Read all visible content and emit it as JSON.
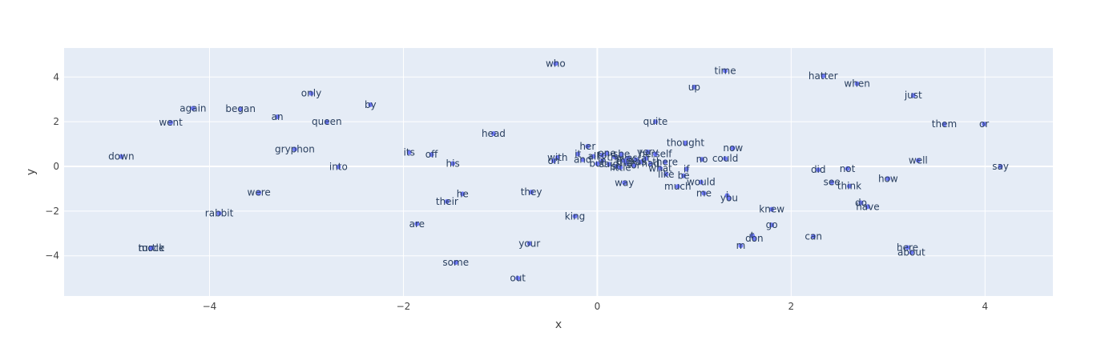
{
  "chart_data": {
    "type": "scatter",
    "xlabel": "x",
    "ylabel": "y",
    "xlim": [
      -5.5,
      4.7
    ],
    "ylim": [
      -5.8,
      5.3
    ],
    "x_ticks": [
      -4,
      -2,
      0,
      2,
      4
    ],
    "y_ticks": [
      -4,
      -2,
      0,
      2,
      4
    ],
    "grid": true,
    "colors": {
      "marker": "#636efa",
      "plot_bg": "#e5ecf6",
      "grid": "#ffffff",
      "label": "#2a3f5f"
    },
    "points": [
      {
        "label": "who",
        "x": -0.43,
        "y": 4.6
      },
      {
        "label": "time",
        "x": 1.32,
        "y": 4.28
      },
      {
        "label": "hatter",
        "x": 2.33,
        "y": 4.05
      },
      {
        "label": "when",
        "x": 2.68,
        "y": 3.7
      },
      {
        "label": "up",
        "x": 1.0,
        "y": 3.55
      },
      {
        "label": "just",
        "x": 3.26,
        "y": 3.18
      },
      {
        "label": "only",
        "x": -2.95,
        "y": 3.27
      },
      {
        "label": "by",
        "x": -2.34,
        "y": 2.76
      },
      {
        "label": "again",
        "x": -4.17,
        "y": 2.6
      },
      {
        "label": "began",
        "x": -3.68,
        "y": 2.57
      },
      {
        "label": "an",
        "x": -3.3,
        "y": 2.22
      },
      {
        "label": "queen",
        "x": -2.79,
        "y": 2.0
      },
      {
        "label": "went",
        "x": -4.4,
        "y": 1.97
      },
      {
        "label": "quite",
        "x": 0.6,
        "y": 2.0
      },
      {
        "label": "them",
        "x": 3.58,
        "y": 1.9
      },
      {
        "label": "or",
        "x": 3.99,
        "y": 1.9
      },
      {
        "label": "head",
        "x": -1.07,
        "y": 1.47
      },
      {
        "label": "her",
        "x": -0.1,
        "y": 0.9
      },
      {
        "label": "thought",
        "x": 0.91,
        "y": 1.05
      },
      {
        "label": "now",
        "x": 1.4,
        "y": 0.82
      },
      {
        "label": "gryphon",
        "x": -3.12,
        "y": 0.77
      },
      {
        "label": "its",
        "x": -1.94,
        "y": 0.63
      },
      {
        "label": "off",
        "x": -1.71,
        "y": 0.53
      },
      {
        "label": "down",
        "x": -4.91,
        "y": 0.44
      },
      {
        "label": "very",
        "x": 0.52,
        "y": 0.65
      },
      {
        "label": "herself",
        "x": 0.6,
        "y": 0.55
      },
      {
        "label": "could",
        "x": 1.32,
        "y": 0.35
      },
      {
        "label": "no",
        "x": 1.08,
        "y": 0.32
      },
      {
        "label": "with",
        "x": -0.41,
        "y": 0.4
      },
      {
        "label": "on",
        "x": -0.45,
        "y": 0.25
      },
      {
        "label": "well",
        "x": 3.31,
        "y": 0.27
      },
      {
        "label": "there",
        "x": 0.7,
        "y": 0.2
      },
      {
        "label": "his",
        "x": -1.49,
        "y": 0.13
      },
      {
        "label": "into",
        "x": -2.67,
        "y": -0.02
      },
      {
        "label": "what",
        "x": 0.65,
        "y": -0.08
      },
      {
        "label": "if",
        "x": 0.92,
        "y": -0.12
      },
      {
        "label": "say",
        "x": 4.16,
        "y": 0.0
      },
      {
        "label": "did",
        "x": 2.28,
        "y": -0.15
      },
      {
        "label": "not",
        "x": 2.58,
        "y": -0.1
      },
      {
        "label": "like",
        "x": 0.71,
        "y": -0.35
      },
      {
        "label": "be",
        "x": 0.89,
        "y": -0.42
      },
      {
        "label": "how",
        "x": 3.0,
        "y": -0.55
      },
      {
        "label": "see",
        "x": 2.42,
        "y": -0.7
      },
      {
        "label": "would",
        "x": 1.07,
        "y": -0.7
      },
      {
        "label": "way",
        "x": 0.28,
        "y": -0.73
      },
      {
        "label": "think",
        "x": 2.6,
        "y": -0.88
      },
      {
        "label": "much",
        "x": 0.83,
        "y": -0.9
      },
      {
        "label": "were",
        "x": -3.49,
        "y": -1.17
      },
      {
        "label": "they",
        "x": -0.68,
        "y": -1.15
      },
      {
        "label": "he",
        "x": -1.39,
        "y": -1.23
      },
      {
        "label": "me",
        "x": 1.1,
        "y": -1.2
      },
      {
        "label": "i",
        "x": 1.34,
        "y": -1.3
      },
      {
        "label": "you",
        "x": 1.36,
        "y": -1.42
      },
      {
        "label": "their",
        "x": -1.55,
        "y": -1.57
      },
      {
        "label": "do",
        "x": 2.72,
        "y": -1.63
      },
      {
        "label": "have",
        "x": 2.79,
        "y": -1.8
      },
      {
        "label": "knew",
        "x": 1.8,
        "y": -1.92
      },
      {
        "label": "rabbit",
        "x": -3.9,
        "y": -2.1
      },
      {
        "label": "king",
        "x": -0.23,
        "y": -2.23
      },
      {
        "label": "are",
        "x": -1.86,
        "y": -2.57
      },
      {
        "label": "go",
        "x": 1.8,
        "y": -2.62
      },
      {
        "label": "can",
        "x": 2.23,
        "y": -3.13
      },
      {
        "label": "t",
        "x": 1.6,
        "y": -3.1
      },
      {
        "label": "don",
        "x": 1.62,
        "y": -3.22
      },
      {
        "label": "your",
        "x": -0.7,
        "y": -3.45
      },
      {
        "label": "m",
        "x": 1.48,
        "y": -3.55
      },
      {
        "label": "here",
        "x": 3.2,
        "y": -3.63
      },
      {
        "label": "about",
        "x": 3.24,
        "y": -3.85
      },
      {
        "label": "turtle",
        "x": -4.6,
        "y": -3.65
      },
      {
        "label": "mock",
        "x": -4.6,
        "y": -3.65
      },
      {
        "label": "some",
        "x": -1.46,
        "y": -4.3
      },
      {
        "label": "out",
        "x": -0.82,
        "y": -5.0
      },
      {
        "label": "and",
        "x": -0.15,
        "y": 0.3
      },
      {
        "label": "all",
        "x": -0.04,
        "y": 0.45
      },
      {
        "label": "it",
        "x": -0.2,
        "y": 0.55
      },
      {
        "label": "to",
        "x": 0.05,
        "y": 0.5
      },
      {
        "label": "the",
        "x": 0.18,
        "y": 0.42
      },
      {
        "label": "was",
        "x": 0.32,
        "y": 0.38
      },
      {
        "label": "she",
        "x": 0.25,
        "y": 0.55
      },
      {
        "label": "of",
        "x": 0.4,
        "y": 0.3
      },
      {
        "label": "in",
        "x": 0.05,
        "y": 0.25
      },
      {
        "label": "said",
        "x": 0.12,
        "y": 0.1
      },
      {
        "label": "but",
        "x": 0.0,
        "y": 0.12
      },
      {
        "label": "that",
        "x": 0.3,
        "y": 0.15
      },
      {
        "label": "as",
        "x": 0.45,
        "y": 0.2
      },
      {
        "label": "for",
        "x": 0.38,
        "y": 0.05
      },
      {
        "label": "so",
        "x": 0.2,
        "y": 0.0
      },
      {
        "label": "at",
        "x": 0.5,
        "y": 0.35
      },
      {
        "label": "had",
        "x": 0.55,
        "y": 0.12
      },
      {
        "label": "one",
        "x": 0.1,
        "y": 0.6
      },
      {
        "label": "this",
        "x": 0.28,
        "y": 0.25
      },
      {
        "label": "little",
        "x": 0.24,
        "y": -0.05
      }
    ]
  }
}
